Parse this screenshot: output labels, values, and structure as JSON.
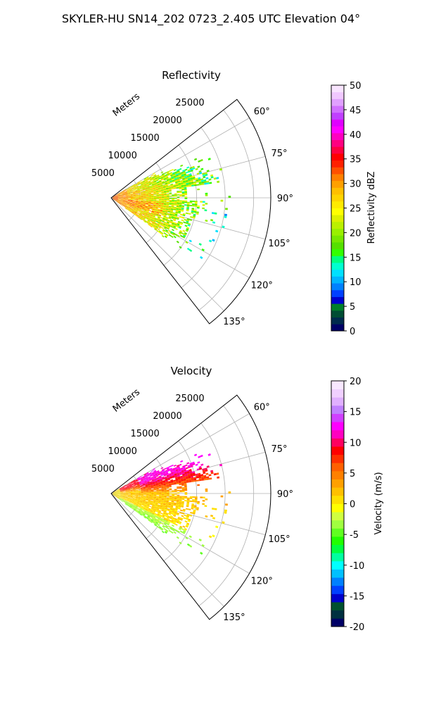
{
  "figure": {
    "suptitle": "SKYLER-HU  SN14_202  0723_2.405 UTC Elevation 04°"
  },
  "chart_data": [
    {
      "type": "heatmap",
      "subtype": "polar-sector (PPI radar scan)",
      "title": "Reflectivity",
      "r_axis_label": "Meters",
      "r_ticks": [
        5000,
        10000,
        15000,
        20000,
        25000
      ],
      "r_tick_labels": [
        "5000",
        "10000",
        "15000",
        "20000",
        "25000"
      ],
      "r_max": 28000,
      "theta_range_deg": [
        52,
        142
      ],
      "theta_ticks_deg": [
        60,
        75,
        90,
        105,
        120,
        135
      ],
      "theta_tick_labels": [
        "60°",
        "75°",
        "90°",
        "105°",
        "120°",
        "135°"
      ],
      "theta_zero": "north",
      "theta_direction": "clockwise",
      "grid": true,
      "colorbar": {
        "label": "Reflectivity dBZ",
        "vmin": 0,
        "vmax": 50,
        "ticks": [
          0,
          5,
          10,
          15,
          20,
          25,
          30,
          35,
          40,
          45,
          50
        ],
        "colors": [
          "#000066",
          "#002a4d",
          "#004d33",
          "#00802a",
          "#0000cc",
          "#0040ff",
          "#0080ff",
          "#00b4ff",
          "#00e0ff",
          "#00ffd0",
          "#00ff80",
          "#33ff00",
          "#55e000",
          "#77e800",
          "#99f000",
          "#bbf000",
          "#ddf000",
          "#ffff00",
          "#ffea00",
          "#ffd400",
          "#ffbf00",
          "#ffa000",
          "#ff8000",
          "#ff5000",
          "#ff2000",
          "#ff0000",
          "#ff0040",
          "#ff0080",
          "#ff00c0",
          "#ff00ff",
          "#e000ff",
          "#c040ff",
          "#d070ff",
          "#e0a0ff",
          "#f0c8ff",
          "#f8e4ff"
        ]
      },
      "echo_summary": {
        "range_extent_m": [
          0,
          21000
        ],
        "azimuth_extent_deg": [
          60,
          125
        ],
        "dominant_values_dbz": "10–30",
        "near_radar_max_dbz": 35
      }
    },
    {
      "type": "heatmap",
      "subtype": "polar-sector (PPI radar scan)",
      "title": "Velocity",
      "r_axis_label": "Meters",
      "r_ticks": [
        5000,
        10000,
        15000,
        20000,
        25000
      ],
      "r_tick_labels": [
        "5000",
        "10000",
        "15000",
        "20000",
        "25000"
      ],
      "r_max": 28000,
      "theta_range_deg": [
        52,
        142
      ],
      "theta_ticks_deg": [
        60,
        75,
        90,
        105,
        120,
        135
      ],
      "theta_tick_labels": [
        "60°",
        "75°",
        "90°",
        "105°",
        "120°",
        "135°"
      ],
      "theta_zero": "north",
      "theta_direction": "clockwise",
      "grid": true,
      "colorbar": {
        "label": "Velocity (m/s)",
        "vmin": -20,
        "vmax": 20,
        "ticks": [
          -20,
          -15,
          -10,
          -5,
          0,
          5,
          10,
          15,
          20
        ],
        "colors": [
          "#000066",
          "#003040",
          "#005030",
          "#0000cc",
          "#0040ff",
          "#0080ff",
          "#00c0ff",
          "#00ffff",
          "#00ffa0",
          "#00ff40",
          "#20ff00",
          "#60ff20",
          "#a0ff40",
          "#d0ff40",
          "#ffff00",
          "#ffe000",
          "#ffc000",
          "#ffa000",
          "#ff8000",
          "#ff6000",
          "#ff3000",
          "#ff0000",
          "#ff0060",
          "#ff00c0",
          "#ff00ff",
          "#d040ff",
          "#c080ff",
          "#e0b0ff",
          "#f0d0ff",
          "#f8e8ff"
        ]
      },
      "echo_summary": {
        "range_extent_m": [
          0,
          21000
        ],
        "azimuth_extent_deg": [
          60,
          125
        ],
        "outbound_region_m_s": "10–12 (orange/red, azimuth 60–85°)",
        "near_zero_region_m_s": "0–4 (yellow, azimuth 85–115°)",
        "inbound_region_m_s": "-3 to -5 (light green, near radar, azimuth 115–135°)"
      }
    }
  ]
}
